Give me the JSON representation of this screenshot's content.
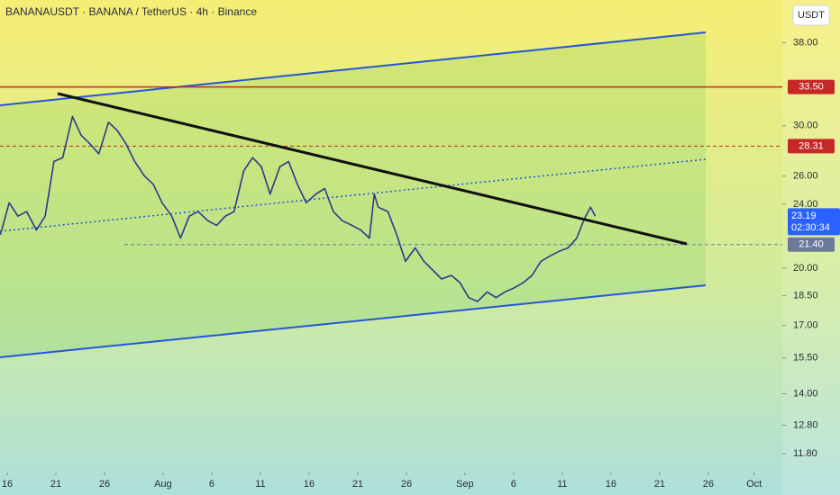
{
  "chart_data": {
    "type": "line",
    "title": "BANANAUSDT · BANANA / TetherUS · 4h · Binance",
    "currency": "USDT",
    "log_scale": true,
    "x": [
      -0.7,
      0.2,
      1.1,
      2.0,
      3.0,
      3.9,
      4.8,
      5.7,
      6.7,
      7.6,
      8.5,
      9.4,
      10.4,
      11.3,
      12.2,
      13.1,
      14.1,
      15.0,
      15.9,
      16.9,
      17.8,
      18.7,
      19.6,
      20.6,
      21.5,
      22.4,
      23.3,
      24.3,
      25.2,
      26.1,
      27.0,
      28.0,
      28.9,
      29.8,
      30.7,
      31.7,
      32.6,
      33.5,
      34.4,
      35.4,
      36.3,
      37.2,
      37.7,
      38.1,
      39.1,
      40.0,
      40.9,
      41.9,
      42.8,
      43.7,
      44.6,
      45.6,
      46.5,
      47.4,
      48.3,
      49.3,
      50.2,
      51.1,
      52.0,
      53.0,
      53.9,
      54.8,
      55.7,
      56.7,
      57.6,
      58.5,
      59.0,
      59.4,
      59.9,
      60.4
    ],
    "series": [
      {
        "color": "#2b3a8c",
        "values": [
          22.0,
          24.1,
          23.2,
          23.5,
          22.3,
          23.2,
          27.1,
          27.4,
          30.8,
          29.2,
          28.5,
          27.7,
          30.3,
          29.6,
          28.5,
          27.1,
          26.0,
          25.4,
          24.1,
          23.2,
          21.8,
          23.2,
          23.5,
          22.9,
          22.6,
          23.2,
          23.5,
          26.4,
          27.4,
          26.7,
          24.7,
          26.7,
          27.1,
          25.4,
          24.1,
          24.7,
          25.1,
          23.5,
          22.9,
          22.6,
          22.3,
          21.8,
          24.7,
          23.8,
          23.5,
          22.0,
          20.4,
          21.2,
          20.4,
          19.9,
          19.4,
          19.6,
          19.2,
          18.4,
          18.2,
          18.7,
          18.4,
          18.7,
          18.9,
          19.2,
          19.6,
          20.4,
          20.7,
          21.0,
          21.2,
          21.8,
          22.6,
          23.2,
          23.8,
          23.19
        ]
      }
    ],
    "last_price_countdown": "02:30:34",
    "last_price_color": "#2962ff",
    "price_lines": [
      {
        "price": {
          "value": 33.5,
          "label": "33.50"
        },
        "color": "#c62828",
        "dashed": false
      },
      {
        "price": 28.31,
        "color": "#c62828",
        "dashed": true
      },
      {
        "price": {
          "value": 21.4,
          "label": "21.40"
        },
        "color": "#6b7a99",
        "dashed": true
      }
    ],
    "xlim": [
      -0.74,
      79.6
    ],
    "xticks": [
      {
        "value": 0,
        "label": "16"
      },
      {
        "value": 5,
        "label": "21"
      },
      {
        "value": 10,
        "label": "26"
      },
      {
        "value": 16,
        "label": "Aug"
      },
      {
        "value": 21,
        "label": "6"
      },
      {
        "value": 26,
        "label": "11"
      },
      {
        "value": 31,
        "label": "16"
      },
      {
        "value": 36,
        "label": "21"
      },
      {
        "value": 41,
        "label": "26"
      },
      {
        "value": 47,
        "label": "Sep"
      },
      {
        "value": 52,
        "label": "6"
      },
      {
        "value": 57,
        "label": "11"
      },
      {
        "value": 62,
        "label": "16"
      },
      {
        "value": 67,
        "label": "21"
      },
      {
        "value": 72,
        "label": "26"
      },
      {
        "value": 76.7,
        "label": "Oct"
      }
    ],
    "ylim": [
      11.19,
      42.9
    ],
    "yticks": [
      {
        "value": 38,
        "label": "38.00"
      },
      {
        "value": 30,
        "label": "30.00"
      },
      {
        "value": 26,
        "label": "26.00"
      },
      {
        "value": 24,
        "label": "24.00"
      },
      {
        "value": 20,
        "label": "20.00"
      },
      {
        "value": 18.5,
        "label": "18.50"
      },
      {
        "value": 17,
        "label": "17.00"
      },
      {
        "value": 15.5,
        "label": "15.50"
      },
      {
        "value": 14,
        "label": "14.00"
      },
      {
        "value": 12.8,
        "label": "12.80"
      },
      {
        "value": 11.8,
        "label": "11.80"
      }
    ]
  }
}
